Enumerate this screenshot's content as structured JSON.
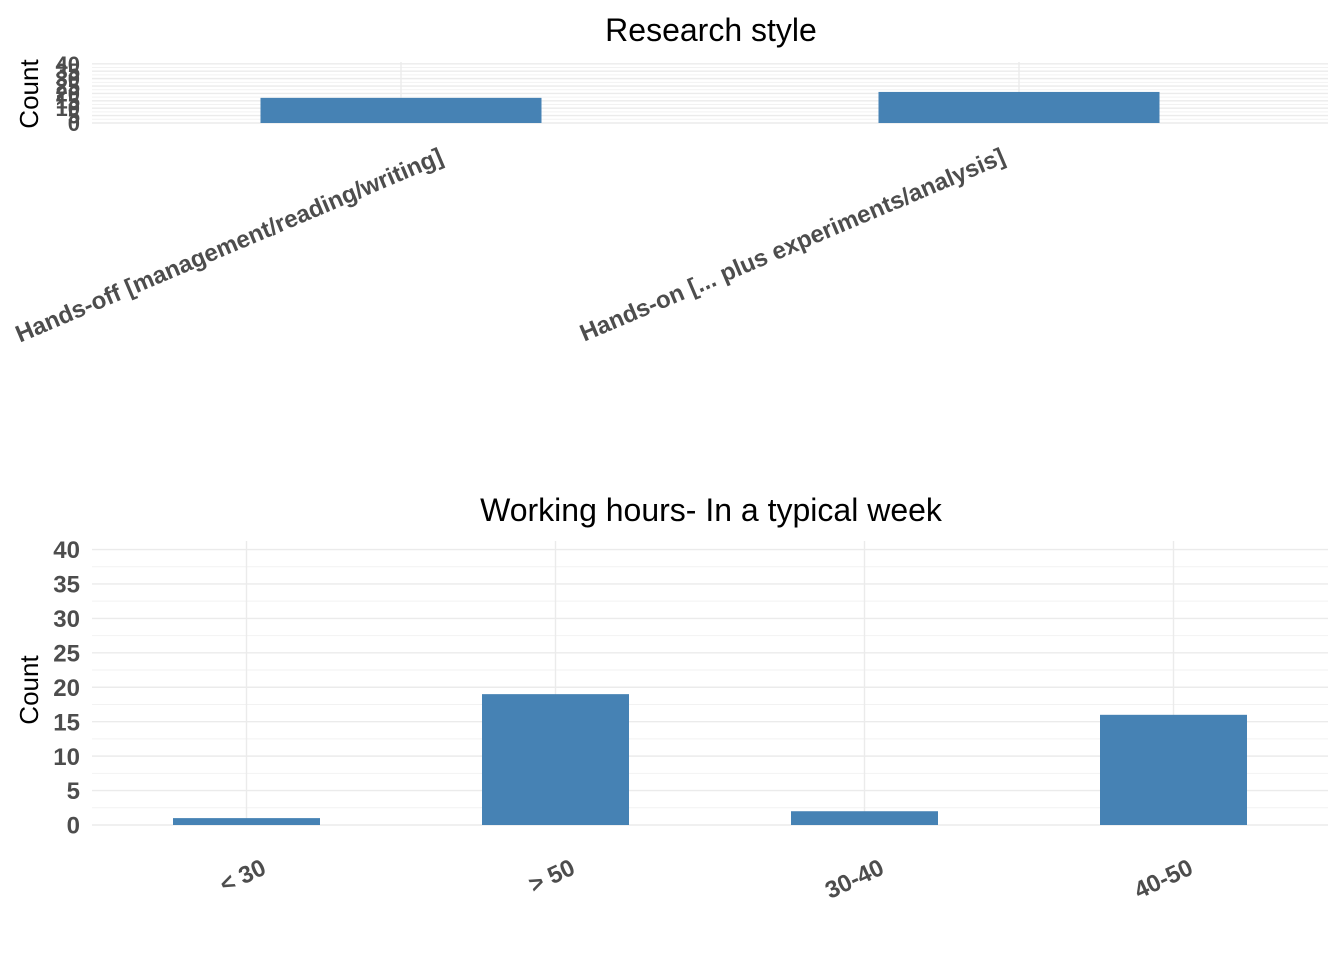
{
  "charts": [
    {
      "title": "Research style",
      "ylabel": "Count",
      "colors": {
        "bar": "#4682b4"
      },
      "chart_data": {
        "type": "bar",
        "categories": [
          "Hands-off [management/reading/writing]",
          "Hands-on [... plus experiments/analysis]"
        ],
        "values": [
          17,
          21
        ],
        "ylim": [
          0,
          40
        ],
        "yticks": [
          "0",
          "5",
          "10",
          "15",
          "20",
          "25",
          "30",
          "35",
          "40"
        ],
        "grid": true
      }
    },
    {
      "title": "Working hours- In a typical week",
      "ylabel": "Count",
      "colors": {
        "bar": "#4682b4"
      },
      "chart_data": {
        "type": "bar",
        "categories": [
          "< 30",
          "> 50",
          "30-40",
          "40-50"
        ],
        "values": [
          1,
          19,
          2,
          16
        ],
        "ylim": [
          0,
          40
        ],
        "yticks": [
          "0",
          "5",
          "10",
          "15",
          "20",
          "25",
          "30",
          "35",
          "40"
        ],
        "grid": true
      }
    }
  ]
}
